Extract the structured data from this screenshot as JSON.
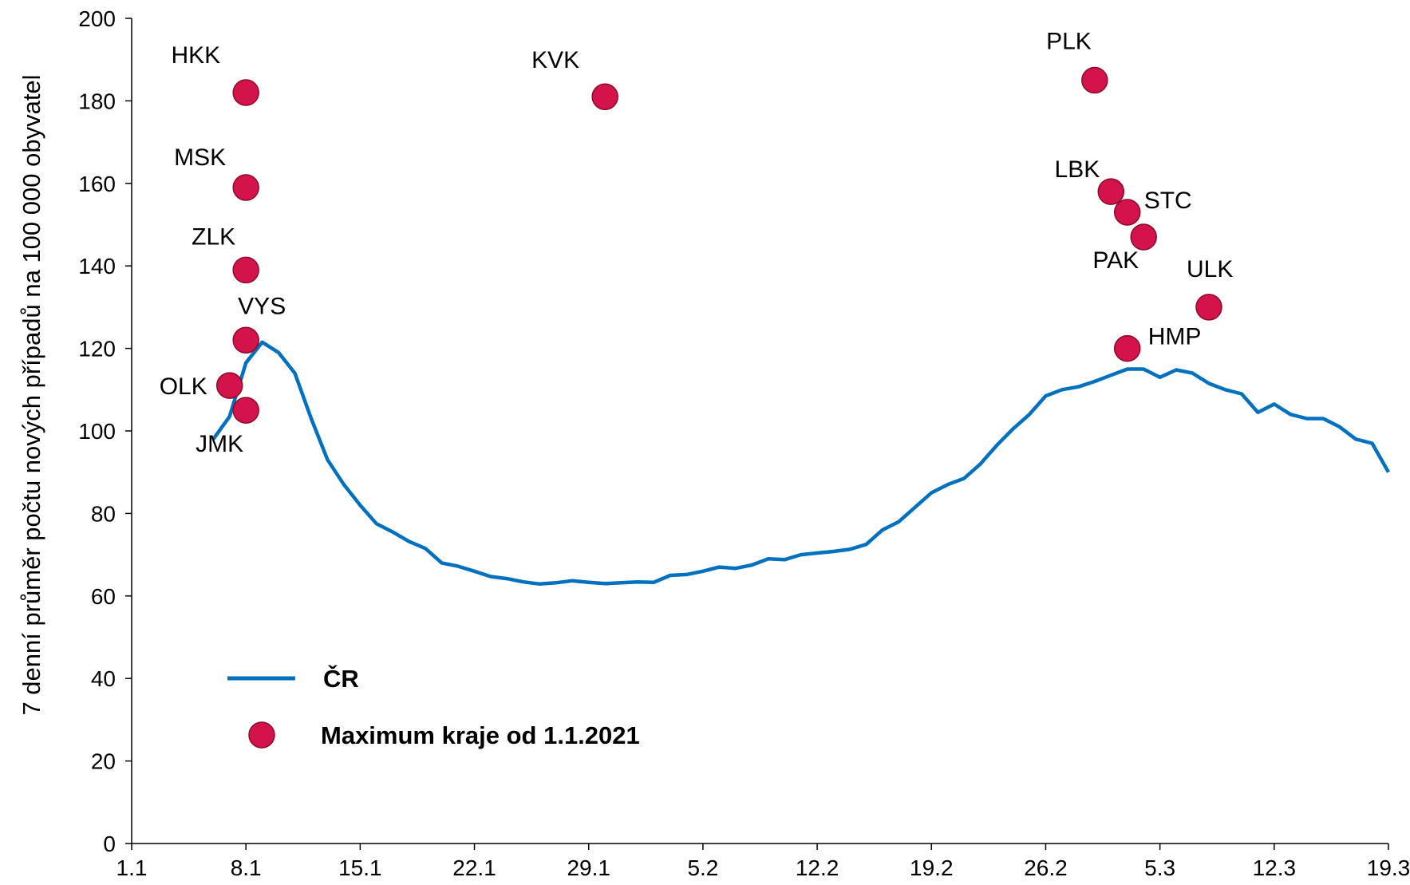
{
  "chart_data": {
    "type": "line",
    "title": "",
    "xlabel": "",
    "ylabel": "7 denní průměr počtu nových případů na 100 000 obyvatel",
    "ylim": [
      0,
      200
    ],
    "yticks": [
      0,
      20,
      40,
      60,
      80,
      100,
      120,
      140,
      160,
      180,
      200
    ],
    "xlim": [
      "1.1",
      "19.3"
    ],
    "xticks": [
      "1.1",
      "8.1",
      "15.1",
      "22.1",
      "29.1",
      "5.2",
      "12.2",
      "19.2",
      "26.2",
      "5.3",
      "12.3",
      "19.3"
    ],
    "grid": false,
    "legend_position": "lower-left",
    "colors": {
      "line": "#0070C0",
      "marker": "#D3134A"
    },
    "line_series": {
      "name": "ČR",
      "x": [
        "6.1",
        "7.1",
        "8.1",
        "9.1",
        "10.1",
        "11.1",
        "12.1",
        "13.1",
        "14.1",
        "15.1",
        "16.1",
        "17.1",
        "18.1",
        "19.1",
        "20.1",
        "21.1",
        "22.1",
        "23.1",
        "24.1",
        "25.1",
        "26.1",
        "27.1",
        "28.1",
        "29.1",
        "30.1",
        "31.1",
        "1.2",
        "2.2",
        "3.2",
        "4.2",
        "5.2",
        "6.2",
        "7.2",
        "8.2",
        "9.2",
        "10.2",
        "11.2",
        "12.2",
        "13.2",
        "14.2",
        "15.2",
        "16.2",
        "17.2",
        "18.2",
        "19.2",
        "20.2",
        "21.2",
        "22.2",
        "23.2",
        "24.2",
        "25.2",
        "26.2",
        "27.2",
        "28.2",
        "1.3",
        "2.3",
        "3.3",
        "4.3",
        "5.3",
        "6.3",
        "7.3",
        "8.3",
        "9.3",
        "10.3",
        "11.3",
        "12.3",
        "13.3",
        "14.3",
        "15.3",
        "16.3",
        "17.3",
        "18.3",
        "19.3"
      ],
      "values": [
        98,
        103.5,
        116.5,
        121.5,
        119,
        114,
        103,
        93,
        87,
        82,
        77.5,
        75.5,
        73.2,
        71.5,
        68,
        67.2,
        66,
        64.7,
        64.2,
        63.4,
        62.9,
        63.2,
        63.7,
        63.3,
        63,
        63.2,
        63.4,
        63.3,
        65,
        65.2,
        66,
        67,
        66.7,
        67.5,
        69,
        68.8,
        70,
        70.4,
        70.8,
        71.3,
        72.5,
        76,
        78,
        81.5,
        85,
        87,
        88.5,
        92,
        96.5,
        100.5,
        104,
        108.5,
        110,
        110.7,
        112,
        113.5,
        115,
        115,
        113,
        114.8,
        114,
        111.5,
        110,
        109,
        104.5,
        106.5,
        104,
        103,
        103,
        101,
        98,
        97,
        90
      ]
    },
    "marker_series": {
      "name": "Maximum kraje od 1.1.2021",
      "points": [
        {
          "label": "HKK",
          "x": "8.1",
          "y": 182
        },
        {
          "label": "MSK",
          "x": "8.1",
          "y": 159
        },
        {
          "label": "ZLK",
          "x": "8.1",
          "y": 139
        },
        {
          "label": "VYS",
          "x": "8.1",
          "y": 122
        },
        {
          "label": "OLK",
          "x": "7.1",
          "y": 111
        },
        {
          "label": "JMK",
          "x": "8.1",
          "y": 105
        },
        {
          "label": "KVK",
          "x": "30.1",
          "y": 181
        },
        {
          "label": "PLK",
          "x": "1.3",
          "y": 185
        },
        {
          "label": "LBK",
          "x": "2.3",
          "y": 158
        },
        {
          "label": "STC",
          "x": "3.3",
          "y": 153
        },
        {
          "label": "PAK",
          "x": "4.3",
          "y": 147
        },
        {
          "label": "HMP",
          "x": "3.3",
          "y": 120
        },
        {
          "label": "ULK",
          "x": "8.3",
          "y": 130
        }
      ]
    },
    "legend": [
      {
        "type": "line",
        "label": "ČR"
      },
      {
        "type": "marker",
        "label": "Maximum kraje od 1.1.2021"
      }
    ]
  }
}
